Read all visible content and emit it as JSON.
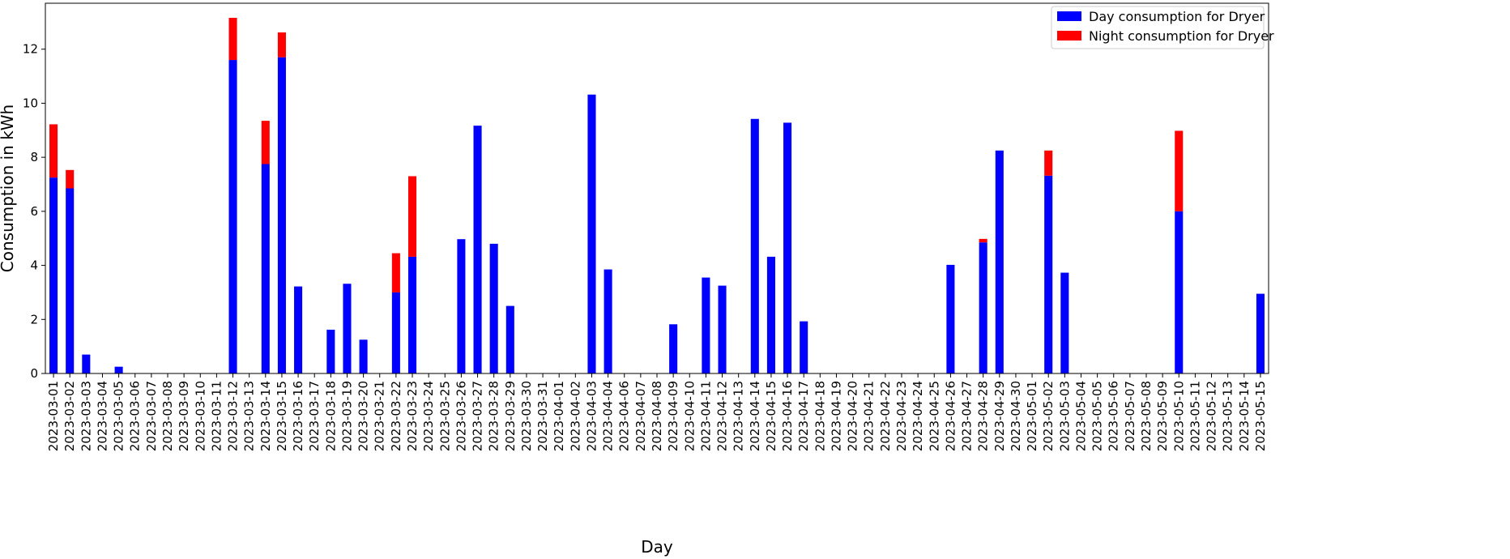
{
  "chart_data": {
    "type": "bar",
    "stacked": true,
    "xlabel": "Day",
    "ylabel": "Consumption in kWh",
    "ylim": [
      0,
      13.7
    ],
    "yticks": [
      0,
      2,
      4,
      6,
      8,
      10,
      12
    ],
    "grid": false,
    "legend_position": "top-right",
    "categories": [
      "2023-03-01",
      "2023-03-02",
      "2023-03-03",
      "2023-03-04",
      "2023-03-05",
      "2023-03-06",
      "2023-03-07",
      "2023-03-08",
      "2023-03-09",
      "2023-03-10",
      "2023-03-11",
      "2023-03-12",
      "2023-03-13",
      "2023-03-14",
      "2023-03-15",
      "2023-03-16",
      "2023-03-17",
      "2023-03-18",
      "2023-03-19",
      "2023-03-20",
      "2023-03-21",
      "2023-03-22",
      "2023-03-23",
      "2023-03-24",
      "2023-03-25",
      "2023-03-26",
      "2023-03-27",
      "2023-03-28",
      "2023-03-29",
      "2023-03-30",
      "2023-03-31",
      "2023-04-01",
      "2023-04-02",
      "2023-04-03",
      "2023-04-04",
      "2023-04-06",
      "2023-04-07",
      "2023-04-08",
      "2023-04-09",
      "2023-04-10",
      "2023-04-11",
      "2023-04-12",
      "2023-04-13",
      "2023-04-14",
      "2023-04-15",
      "2023-04-16",
      "2023-04-17",
      "2023-04-18",
      "2023-04-19",
      "2023-04-20",
      "2023-04-21",
      "2023-04-22",
      "2023-04-23",
      "2023-04-24",
      "2023-04-25",
      "2023-04-26",
      "2023-04-27",
      "2023-04-28",
      "2023-04-29",
      "2023-04-30",
      "2023-05-01",
      "2023-05-02",
      "2023-05-03",
      "2023-05-04",
      "2023-05-05",
      "2023-05-06",
      "2023-05-07",
      "2023-05-08",
      "2023-05-09",
      "2023-05-10",
      "2023-05-11",
      "2023-05-12",
      "2023-05-13",
      "2023-05-14",
      "2023-05-15"
    ],
    "series": [
      {
        "name": "Day consumption for Dryer",
        "color": "#0000ff",
        "values": [
          7.25,
          6.85,
          0.7,
          0,
          0.25,
          0,
          0,
          0,
          0,
          0,
          0,
          11.6,
          0,
          7.75,
          11.7,
          3.22,
          0,
          1.62,
          3.32,
          1.25,
          0,
          3.0,
          4.32,
          0,
          0,
          4.97,
          9.17,
          4.8,
          2.5,
          0,
          0,
          0,
          0,
          10.32,
          3.85,
          0,
          0,
          0,
          1.82,
          0,
          3.55,
          3.25,
          0,
          9.42,
          4.32,
          9.28,
          1.93,
          0,
          0,
          0,
          0,
          0,
          0,
          0,
          0,
          4.02,
          0,
          4.85,
          8.25,
          0,
          0,
          7.32,
          3.73,
          0,
          0,
          0,
          0,
          0,
          0,
          6.0,
          0,
          0,
          0,
          0,
          2.95
        ]
      },
      {
        "name": "Night consumption for Dryer",
        "color": "#ff0000",
        "values": [
          1.97,
          0.68,
          0,
          0,
          0,
          0,
          0,
          0,
          0,
          0,
          0,
          1.56,
          0,
          1.6,
          0.92,
          0,
          0,
          0,
          0,
          0,
          0,
          1.45,
          2.98,
          0,
          0,
          0,
          0,
          0,
          0,
          0,
          0,
          0,
          0,
          0,
          0,
          0,
          0,
          0,
          0,
          0,
          0,
          0,
          0,
          0,
          0,
          0,
          0,
          0,
          0,
          0,
          0,
          0,
          0,
          0,
          0,
          0,
          0,
          0.13,
          0,
          0,
          0,
          0.93,
          0,
          0,
          0,
          0,
          0,
          0,
          0,
          2.98,
          0,
          0,
          0,
          0,
          0
        ]
      }
    ]
  }
}
